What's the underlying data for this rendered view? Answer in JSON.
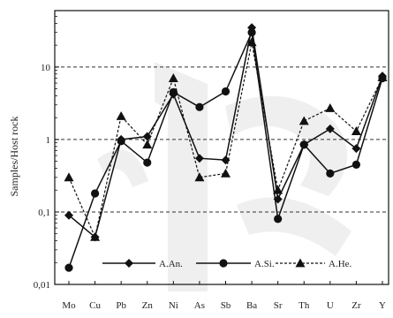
{
  "chart_data": {
    "type": "line",
    "title": "",
    "xlabel": "",
    "ylabel": "Samples/Host rock",
    "y_scale": "log",
    "ylim": [
      0.01,
      60
    ],
    "y_ticks": [
      {
        "value": 0.01,
        "label": "0,01"
      },
      {
        "value": 0.1,
        "label": "0,1"
      },
      {
        "value": 1,
        "label": "1"
      },
      {
        "value": 10,
        "label": "10"
      }
    ],
    "grid": "horizontal dashed at 0.1, 1, 10",
    "legend": "bottom, inside plot",
    "categories": [
      "Mo",
      "Cu",
      "Pb",
      "Zn",
      "Ni",
      "As",
      "Sb",
      "Ba",
      "Sr",
      "Th",
      "U",
      "Zr",
      "Y"
    ],
    "series": [
      {
        "name": "A.An.",
        "marker": "diamond",
        "line": "solid",
        "values": [
          0.09,
          0.045,
          1.0,
          1.1,
          4.2,
          0.55,
          0.52,
          35,
          0.15,
          0.85,
          1.4,
          0.75,
          7.5
        ]
      },
      {
        "name": "A.Si.",
        "marker": "circle",
        "line": "solid",
        "values": [
          0.017,
          0.18,
          0.95,
          0.48,
          4.5,
          2.8,
          4.6,
          30,
          0.08,
          0.85,
          0.34,
          0.45,
          7.0
        ]
      },
      {
        "name": "A.He.",
        "marker": "triangle",
        "line": "dashed",
        "values": [
          0.3,
          0.045,
          2.1,
          0.85,
          7.0,
          0.3,
          0.34,
          22,
          0.2,
          1.8,
          2.7,
          1.3,
          7.2
        ]
      }
    ]
  }
}
